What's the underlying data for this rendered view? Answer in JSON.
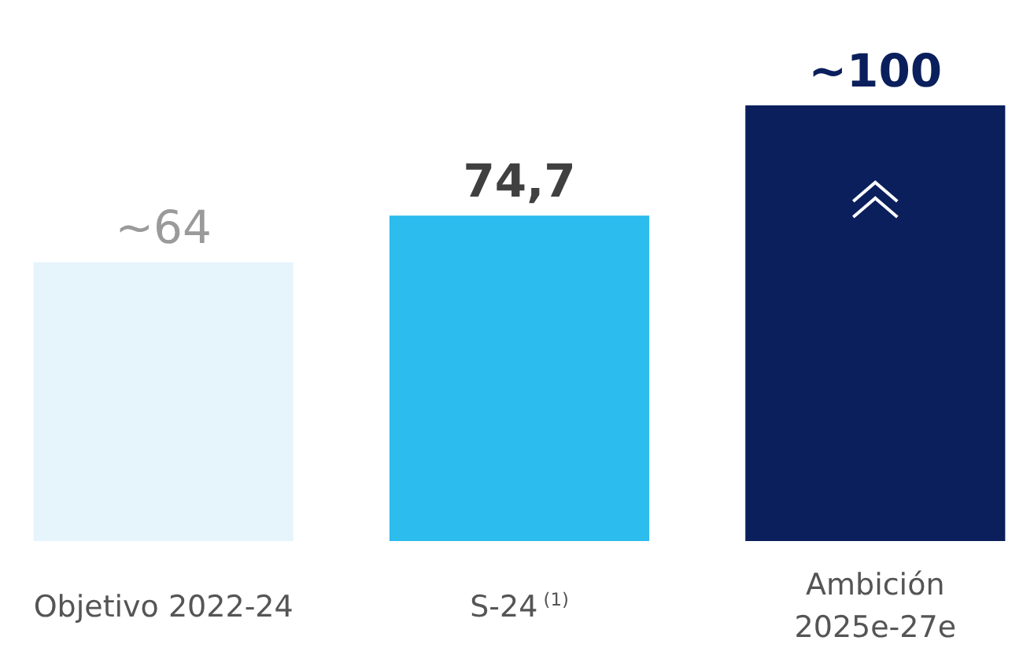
{
  "chart_data": {
    "type": "bar",
    "categories": [
      "Objetivo 2022-24",
      "S-24$^{(1)}$",
      "Ambición 2025e-27e"
    ],
    "values": [
      64,
      74.7,
      100
    ],
    "colors": [
      "#e6f4fc",
      "#2cbcee",
      "#0a1f5c"
    ],
    "value_labels": [
      "~64",
      "74,7",
      "~100"
    ]
  }
}
